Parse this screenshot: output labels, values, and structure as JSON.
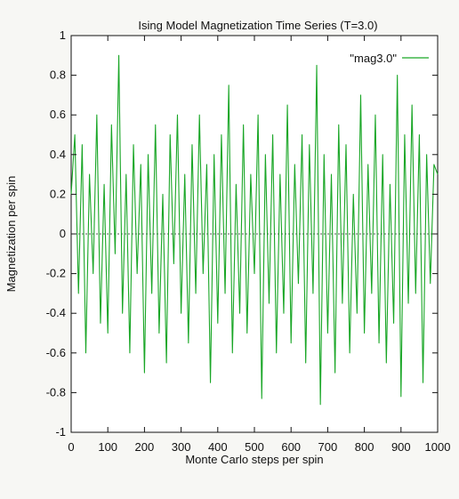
{
  "chart_data": {
    "type": "line",
    "title": "Ising Model Magnetization Time Series (T=3.0)",
    "xlabel": "Monte Carlo steps per spin",
    "ylabel": "Magnetization per spin",
    "xlim": [
      0,
      1000
    ],
    "ylim": [
      -1,
      1
    ],
    "x_ticks": [
      0,
      100,
      200,
      300,
      400,
      500,
      600,
      700,
      800,
      900,
      1000
    ],
    "y_ticks": [
      -1,
      -0.8,
      -0.6,
      -0.4,
      -0.2,
      0,
      0.2,
      0.4,
      0.6,
      0.8,
      1
    ],
    "y_tick_labels": [
      "-1",
      "-0.8",
      "-0.6",
      "-0.4",
      "-0.2",
      "0",
      "0.2",
      "0.4",
      "0.6",
      "0.8",
      "1"
    ],
    "grid": false,
    "zero_line": true,
    "legend": {
      "position": "top-right"
    },
    "colors": {
      "series": "#19a626",
      "axis": "#111111",
      "background": "#ffffff"
    },
    "series": [
      {
        "name": "\"mag3.0\"",
        "x": [
          0,
          10,
          20,
          30,
          40,
          50,
          60,
          70,
          80,
          90,
          100,
          110,
          120,
          130,
          140,
          150,
          160,
          170,
          180,
          190,
          200,
          210,
          220,
          230,
          240,
          250,
          260,
          270,
          280,
          290,
          300,
          310,
          320,
          330,
          340,
          350,
          360,
          370,
          380,
          390,
          400,
          410,
          420,
          430,
          440,
          450,
          460,
          470,
          480,
          490,
          500,
          510,
          520,
          530,
          540,
          550,
          560,
          570,
          580,
          590,
          600,
          610,
          620,
          630,
          640,
          650,
          660,
          670,
          680,
          690,
          700,
          710,
          720,
          730,
          740,
          750,
          760,
          770,
          780,
          790,
          800,
          810,
          820,
          830,
          840,
          850,
          860,
          870,
          880,
          890,
          900,
          910,
          920,
          930,
          940,
          950,
          960,
          970,
          980,
          990,
          1000
        ],
        "y": [
          0.2,
          0.5,
          -0.3,
          0.45,
          -0.6,
          0.3,
          -0.2,
          0.6,
          -0.45,
          0.25,
          -0.5,
          0.55,
          -0.1,
          0.9,
          -0.4,
          0.3,
          -0.6,
          0.45,
          -0.2,
          0.35,
          -0.7,
          0.4,
          -0.3,
          0.55,
          -0.5,
          0.2,
          -0.65,
          0.5,
          -0.15,
          0.6,
          -0.4,
          0.3,
          -0.55,
          0.45,
          -0.3,
          0.6,
          -0.2,
          0.35,
          -0.75,
          0.4,
          -0.45,
          0.5,
          -0.3,
          0.75,
          -0.6,
          0.25,
          -0.4,
          0.55,
          -0.5,
          0.3,
          -0.2,
          0.6,
          -0.83,
          0.4,
          -0.35,
          0.5,
          -0.6,
          0.3,
          -0.4,
          0.65,
          -0.55,
          0.35,
          -0.25,
          0.5,
          -0.65,
          0.45,
          -0.3,
          0.85,
          -0.86,
          0.4,
          -0.5,
          0.3,
          -0.7,
          0.55,
          -0.35,
          0.45,
          -0.6,
          0.2,
          -0.4,
          0.7,
          -0.5,
          0.35,
          -0.3,
          0.6,
          -0.55,
          0.4,
          -0.65,
          0.25,
          -0.45,
          0.8,
          -0.82,
          0.5,
          -0.35,
          0.65,
          -0.3,
          0.5,
          -0.75,
          0.4,
          -0.25,
          0.35,
          0.3
        ]
      }
    ]
  }
}
